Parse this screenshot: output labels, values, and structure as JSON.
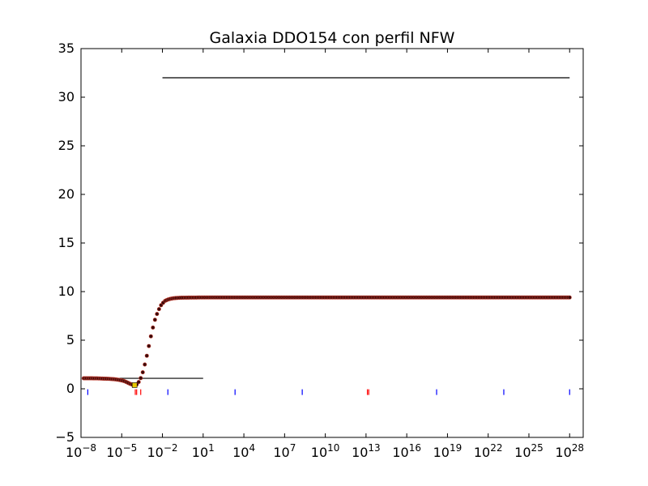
{
  "chart_data": {
    "type": "scatter",
    "title": "Galaxia DDO154 con perfil NFW",
    "xlabel": "",
    "ylabel": "",
    "xscale": "log",
    "xlim_log10": [
      -8,
      29
    ],
    "ylim": [
      -5,
      35
    ],
    "yticks": [
      -5,
      0,
      5,
      10,
      15,
      20,
      25,
      30,
      35
    ],
    "xtick_labels": [
      {
        "base": "10",
        "exp": "-8",
        "log10": -8
      },
      {
        "base": "10",
        "exp": "-5",
        "log10": -5
      },
      {
        "base": "10",
        "exp": "-2",
        "log10": -2
      },
      {
        "base": "10",
        "exp": "1",
        "log10": 1
      },
      {
        "base": "10",
        "exp": "4",
        "log10": 4
      },
      {
        "base": "10",
        "exp": "7",
        "log10": 7
      },
      {
        "base": "10",
        "exp": "10",
        "log10": 10
      },
      {
        "base": "10",
        "exp": "13",
        "log10": 13
      },
      {
        "base": "10",
        "exp": "16",
        "log10": 16
      },
      {
        "base": "10",
        "exp": "19",
        "log10": 19
      },
      {
        "base": "10",
        "exp": "22",
        "log10": 22
      },
      {
        "base": "10",
        "exp": "25",
        "log10": 25
      },
      {
        "base": "10",
        "exp": "28",
        "log10": 28
      }
    ],
    "grid": false,
    "legend": "none",
    "series": [
      {
        "marker_color": "#3b0a0a",
        "marker_edge": "#c0392b",
        "points": [
          [
            -7.8,
            1.08
          ],
          [
            -7.6,
            1.08
          ],
          [
            -7.4,
            1.08
          ],
          [
            -7.2,
            1.08
          ],
          [
            -7.0,
            1.07
          ],
          [
            -6.8,
            1.07
          ],
          [
            -6.6,
            1.06
          ],
          [
            -6.4,
            1.05
          ],
          [
            -6.2,
            1.04
          ],
          [
            -6.0,
            1.03
          ],
          [
            -5.8,
            1.01
          ],
          [
            -5.6,
            0.99
          ],
          [
            -5.4,
            0.96
          ],
          [
            -5.2,
            0.92
          ],
          [
            -5.0,
            0.86
          ],
          [
            -4.8,
            0.78
          ],
          [
            -4.6,
            0.66
          ],
          [
            -4.4,
            0.52
          ],
          [
            -4.2,
            0.42
          ],
          [
            -4.05,
            0.38
          ],
          [
            -3.9,
            0.45
          ],
          [
            -3.75,
            0.7
          ],
          [
            -3.6,
            1.1
          ],
          [
            -3.45,
            1.7
          ],
          [
            -3.3,
            2.5
          ],
          [
            -3.15,
            3.4
          ],
          [
            -3.0,
            4.4
          ],
          [
            -2.85,
            5.4
          ],
          [
            -2.7,
            6.3
          ],
          [
            -2.55,
            7.1
          ],
          [
            -2.4,
            7.7
          ],
          [
            -2.25,
            8.2
          ],
          [
            -2.1,
            8.6
          ],
          [
            -1.95,
            8.85
          ],
          [
            -1.8,
            9.05
          ],
          [
            -1.6,
            9.18
          ],
          [
            -1.4,
            9.26
          ],
          [
            -1.2,
            9.31
          ],
          [
            -1.0,
            9.34
          ],
          [
            -0.6,
            9.37
          ],
          [
            -0.2,
            9.38
          ],
          [
            0.5,
            9.39
          ],
          [
            1.5,
            9.4
          ],
          [
            3,
            9.4
          ],
          [
            5,
            9.4
          ],
          [
            8,
            9.4
          ],
          [
            11,
            9.4
          ],
          [
            14,
            9.4
          ],
          [
            17,
            9.4
          ],
          [
            20,
            9.4
          ],
          [
            23,
            9.4
          ],
          [
            26,
            9.4
          ],
          [
            28,
            9.4
          ]
        ]
      }
    ],
    "lines": [
      {
        "x_log10": [
          -2,
          28
        ],
        "y": [
          32,
          32
        ],
        "color": "#000000"
      },
      {
        "x_log10": [
          -6.6,
          1
        ],
        "y": [
          1.08,
          1.08
        ],
        "color": "#000000"
      }
    ],
    "markers": [
      {
        "x_log10": [
          -7.5,
          -1.6,
          3.35,
          8.3,
          18.2,
          23.15,
          28
        ],
        "y": -0.3,
        "color": "#0000ff"
      },
      {
        "x_log10": [
          -4,
          -3.9,
          -3.6,
          13.1,
          13.2
        ],
        "y": -0.3,
        "color": "#ff0000"
      }
    ],
    "highlight_point": {
      "x_log10": -4.05,
      "y": 0.38,
      "color": "#e8c800"
    }
  }
}
